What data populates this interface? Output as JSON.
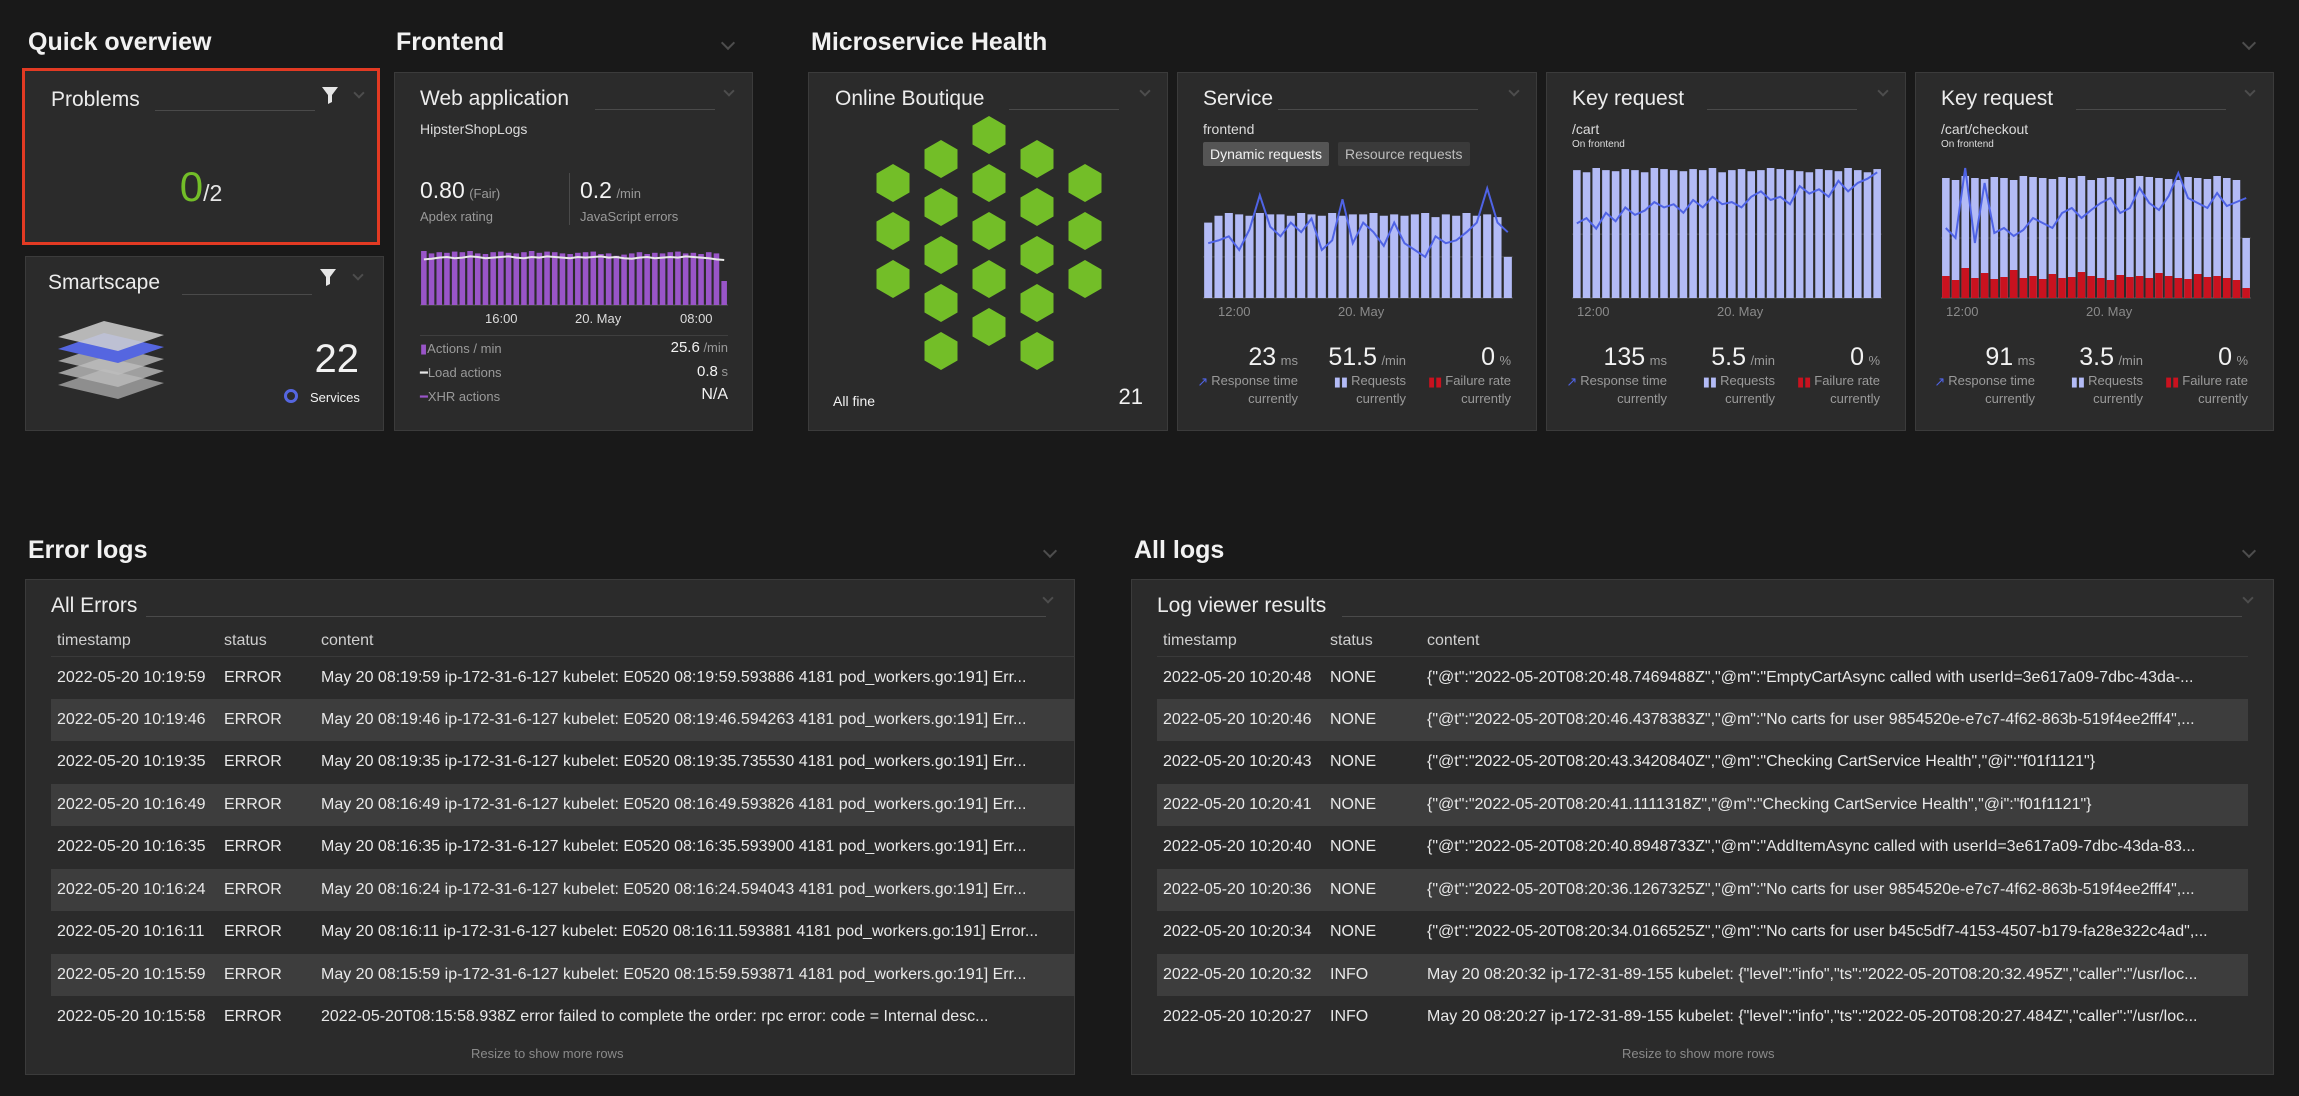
{
  "sections": {
    "quick": "Quick overview",
    "frontend": "Frontend",
    "micro": "Microservice Health",
    "errors": "Error logs",
    "all": "All logs"
  },
  "problems": {
    "title": "Problems",
    "count": "0",
    "total": "/2",
    "accent": "#73be28"
  },
  "smartscape": {
    "title": "Smartscape",
    "count": "22",
    "label": "Services"
  },
  "webapp": {
    "title": "Web application",
    "app": "HipsterShopLogs",
    "apdex": "0.80",
    "apdex_qual": "(Fair)",
    "apdex_label": "Apdex rating",
    "js": "0.2",
    "js_unit": "/min",
    "js_label": "JavaScript errors",
    "chart_data": {
      "type": "bar",
      "x_ticks": [
        "16:00",
        "20. May",
        "08:00"
      ],
      "values": [
        90,
        86,
        88,
        87,
        89,
        88,
        90,
        86,
        85,
        88,
        89,
        87,
        86,
        88,
        90,
        87,
        89,
        88,
        86,
        85,
        87,
        88,
        89,
        85,
        86,
        82,
        84,
        86,
        88,
        85,
        87,
        86,
        88,
        89,
        86,
        87,
        85,
        88,
        86,
        40
      ],
      "line": [
        76,
        77,
        79,
        80,
        78,
        79,
        81,
        80,
        78,
        79,
        80,
        81,
        79,
        78,
        80,
        79,
        81,
        80,
        79,
        78,
        80,
        79,
        80,
        81,
        79,
        80,
        78,
        77,
        79,
        80,
        78,
        79,
        80,
        79,
        81,
        80,
        79,
        78,
        76,
        75
      ]
    },
    "rows": [
      {
        "label": "Actions / min",
        "value": "25.6",
        "unit": "/min"
      },
      {
        "label": "Load actions",
        "value": "0.8",
        "unit": "s"
      },
      {
        "label": "XHR actions",
        "value": "N/A",
        "unit": ""
      }
    ]
  },
  "boutique": {
    "title": "Online Boutique",
    "status": "All fine",
    "count": "21"
  },
  "service": {
    "title": "Service",
    "name": "frontend",
    "tab_dynamic": "Dynamic requests",
    "tab_resource": "Resource requests",
    "chart_data": {
      "type": "bar",
      "x_ticks": [
        "12:00",
        "20. May"
      ],
      "values": [
        55,
        60,
        62,
        61,
        60,
        62,
        61,
        61,
        60,
        62,
        61,
        60,
        62,
        60,
        61,
        61,
        62,
        60,
        61,
        60,
        61,
        62,
        59,
        61,
        60,
        62,
        60,
        61,
        59,
        30
      ],
      "line": [
        40,
        42,
        45,
        35,
        50,
        75,
        52,
        45,
        55,
        48,
        58,
        35,
        42,
        72,
        40,
        55,
        48,
        38,
        55,
        40,
        35,
        30,
        45,
        40,
        42,
        48,
        55,
        80,
        55,
        48
      ]
    },
    "m1": {
      "v": "23",
      "u": "ms",
      "l1": "Response time",
      "l2": "currently"
    },
    "m2": {
      "v": "51.5",
      "u": "/min",
      "l1": "Requests",
      "l2": "currently"
    },
    "m3": {
      "v": "0",
      "u": "%",
      "l1": "Failure rate",
      "l2": "currently"
    }
  },
  "kr_cart": {
    "title": "Key request",
    "name": "/cart",
    "sub": "On frontend",
    "chart_data": {
      "type": "bar",
      "x_ticks": [
        "12:00",
        "20. May"
      ],
      "values": [
        120,
        118,
        122,
        120,
        119,
        121,
        120,
        118,
        122,
        121,
        120,
        119,
        121,
        120,
        122,
        118,
        120,
        121,
        119,
        120,
        122,
        121,
        120,
        119,
        118,
        121,
        120,
        119,
        122,
        120,
        118,
        121
      ],
      "line": [
        70,
        75,
        65,
        80,
        72,
        85,
        78,
        82,
        90,
        85,
        88,
        80,
        92,
        85,
        95,
        88,
        90,
        85,
        95,
        100,
        92,
        95,
        88,
        105,
        98,
        102,
        95,
        110,
        100,
        108,
        112,
        118
      ]
    },
    "m1": {
      "v": "135",
      "u": "ms",
      "l1": "Response time",
      "l2": "currently"
    },
    "m2": {
      "v": "5.5",
      "u": "/min",
      "l1": "Requests",
      "l2": "currently"
    },
    "m3": {
      "v": "0",
      "u": "%",
      "l1": "Failure rate",
      "l2": "currently"
    }
  },
  "kr_checkout": {
    "title": "Key request",
    "name": "/cart/checkout",
    "sub": "On frontend",
    "chart_data": {
      "type": "bar",
      "x_ticks": [
        "12:00",
        "20. May"
      ],
      "values": [
        120,
        118,
        122,
        120,
        119,
        121,
        120,
        118,
        122,
        121,
        120,
        119,
        121,
        120,
        122,
        118,
        120,
        121,
        119,
        120,
        122,
        121,
        120,
        119,
        118,
        121,
        120,
        119,
        122,
        120,
        118,
        60
      ],
      "red": [
        22,
        18,
        30,
        20,
        25,
        19,
        21,
        28,
        20,
        22,
        19,
        24,
        20,
        21,
        26,
        22,
        20,
        18,
        23,
        21,
        22,
        20,
        25,
        22,
        20,
        19,
        24,
        21,
        22,
        20,
        18,
        10
      ],
      "line": [
        70,
        60,
        130,
        55,
        115,
        65,
        70,
        62,
        68,
        80,
        75,
        70,
        85,
        90,
        80,
        88,
        95,
        100,
        85,
        90,
        110,
        95,
        88,
        102,
        125,
        100,
        95,
        90,
        105,
        92,
        96,
        100
      ]
    },
    "m1": {
      "v": "91",
      "u": "ms",
      "l1": "Response time",
      "l2": "currently"
    },
    "m2": {
      "v": "3.5",
      "u": "/min",
      "l1": "Requests",
      "l2": "currently"
    },
    "m3": {
      "v": "0",
      "u": "%",
      "l1": "Failure rate",
      "l2": "currently"
    }
  },
  "all_errors": {
    "title": "All Errors",
    "cols": [
      "timestamp",
      "status",
      "content"
    ],
    "resize": "Resize to show more rows",
    "rows": [
      [
        "2022-05-20 10:19:59",
        "ERROR",
        "May 20 08:19:59 ip-172-31-6-127 kubelet: E0520 08:19:59.593886 4181 pod_workers.go:191] Err..."
      ],
      [
        "2022-05-20 10:19:46",
        "ERROR",
        "May 20 08:19:46 ip-172-31-6-127 kubelet: E0520 08:19:46.594263 4181 pod_workers.go:191] Err..."
      ],
      [
        "2022-05-20 10:19:35",
        "ERROR",
        "May 20 08:19:35 ip-172-31-6-127 kubelet: E0520 08:19:35.735530 4181 pod_workers.go:191] Err..."
      ],
      [
        "2022-05-20 10:16:49",
        "ERROR",
        "May 20 08:16:49 ip-172-31-6-127 kubelet: E0520 08:16:49.593826 4181 pod_workers.go:191] Err..."
      ],
      [
        "2022-05-20 10:16:35",
        "ERROR",
        "May 20 08:16:35 ip-172-31-6-127 kubelet: E0520 08:16:35.593900 4181 pod_workers.go:191] Err..."
      ],
      [
        "2022-05-20 10:16:24",
        "ERROR",
        "May 20 08:16:24 ip-172-31-6-127 kubelet: E0520 08:16:24.594043 4181 pod_workers.go:191] Err..."
      ],
      [
        "2022-05-20 10:16:11",
        "ERROR",
        "May 20 08:16:11 ip-172-31-6-127 kubelet: E0520 08:16:11.593881 4181 pod_workers.go:191] Error..."
      ],
      [
        "2022-05-20 10:15:59",
        "ERROR",
        "May 20 08:15:59 ip-172-31-6-127 kubelet: E0520 08:15:59.593871 4181 pod_workers.go:191] Err..."
      ],
      [
        "2022-05-20 10:15:58",
        "ERROR",
        "2022-05-20T08:15:58.938Z error failed to complete the order: rpc error: code = Internal desc..."
      ]
    ]
  },
  "log_viewer": {
    "title": "Log viewer results",
    "cols": [
      "timestamp",
      "status",
      "content"
    ],
    "resize": "Resize to show more rows",
    "rows": [
      [
        "2022-05-20 10:20:48",
        "NONE",
        "{\"@t\":\"2022-05-20T08:20:48.7469488Z\",\"@m\":\"EmptyCartAsync called with userId=3e617a09-7dbc-43da-..."
      ],
      [
        "2022-05-20 10:20:46",
        "NONE",
        "{\"@t\":\"2022-05-20T08:20:46.4378383Z\",\"@m\":\"No carts for user 9854520e-e7c7-4f62-863b-519f4ee2fff4\",..."
      ],
      [
        "2022-05-20 10:20:43",
        "NONE",
        "{\"@t\":\"2022-05-20T08:20:43.3420840Z\",\"@m\":\"Checking CartService Health\",\"@i\":\"f01f1121\"}"
      ],
      [
        "2022-05-20 10:20:41",
        "NONE",
        "{\"@t\":\"2022-05-20T08:20:41.1111318Z\",\"@m\":\"Checking CartService Health\",\"@i\":\"f01f1121\"}"
      ],
      [
        "2022-05-20 10:20:40",
        "NONE",
        "{\"@t\":\"2022-05-20T08:20:40.8948733Z\",\"@m\":\"AddItemAsync called with userId=3e617a09-7dbc-43da-83..."
      ],
      [
        "2022-05-20 10:20:36",
        "NONE",
        "{\"@t\":\"2022-05-20T08:20:36.1267325Z\",\"@m\":\"No carts for user 9854520e-e7c7-4f62-863b-519f4ee2fff4\",..."
      ],
      [
        "2022-05-20 10:20:34",
        "NONE",
        "{\"@t\":\"2022-05-20T08:20:34.0166525Z\",\"@m\":\"No carts for user b45c5df7-4153-4507-b179-fa28e322c4ad\",..."
      ],
      [
        "2022-05-20 10:20:32",
        "INFO",
        "May 20 08:20:32 ip-172-31-89-155 kubelet: {\"level\":\"info\",\"ts\":\"2022-05-20T08:20:32.495Z\",\"caller\":\"/usr/loc..."
      ],
      [
        "2022-05-20 10:20:27",
        "INFO",
        "May 20 08:20:27 ip-172-31-89-155 kubelet: {\"level\":\"info\",\"ts\":\"2022-05-20T08:20:27.484Z\",\"caller\":\"/usr/loc..."
      ]
    ]
  },
  "colors": {
    "bar_purple": "#9955c8",
    "bar_blue": "#b3bbf6",
    "line_blue": "#4f63e5",
    "fail_red": "#c9121f",
    "hex_green": "#73be28",
    "highlight": "#e23a23"
  }
}
